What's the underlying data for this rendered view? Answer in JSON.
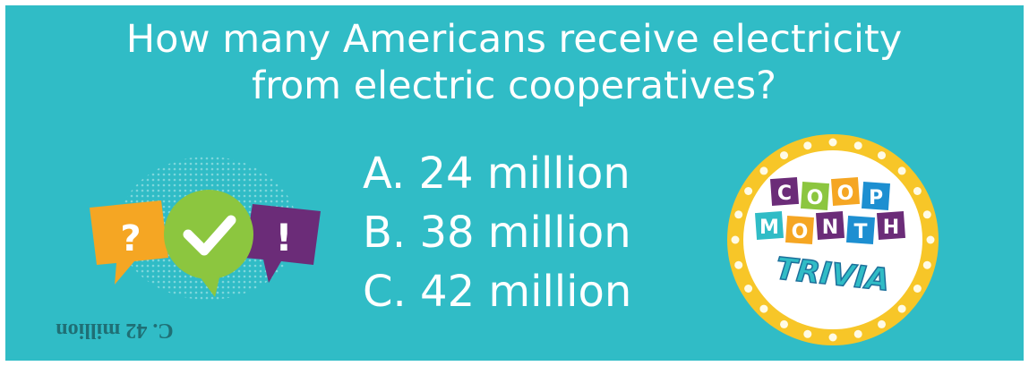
{
  "question": {
    "lines": [
      "How many Americans receive electricity",
      "from electric cooperatives?"
    ]
  },
  "options": [
    "A. 24 million",
    "B. 38 million",
    "C. 42 million"
  ],
  "icons": {
    "question_mark": "?",
    "exclamation_mark": "!"
  },
  "badge": {
    "row1": [
      "C",
      "O",
      "O",
      "P"
    ],
    "row2": [
      "M",
      "O",
      "N",
      "T",
      "H"
    ],
    "word": "TRIVIA"
  },
  "answer": "C. 42 million"
}
